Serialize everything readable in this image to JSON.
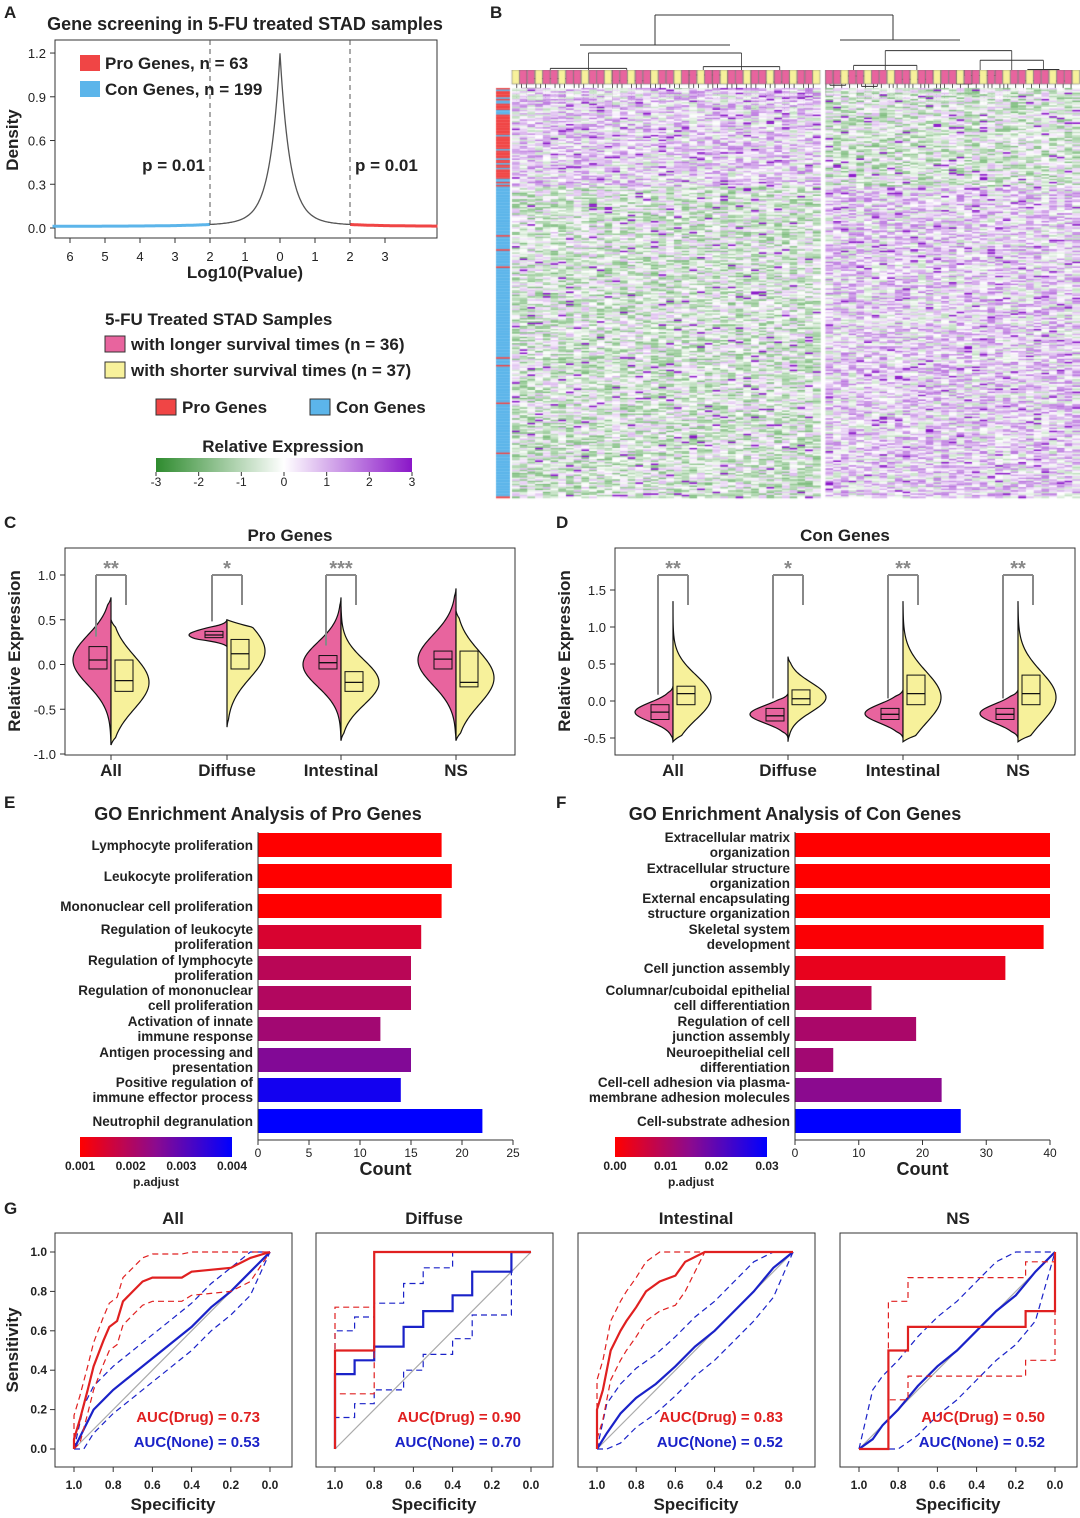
{
  "panel_labels": [
    "A",
    "B",
    "C",
    "D",
    "E",
    "F",
    "G"
  ],
  "colors": {
    "pink": "#e8649e",
    "yellow": "#f7f19b",
    "pro": "#f04545",
    "con": "#5cb5ea",
    "heat_low": "#2e8b2e",
    "heat_high": "#8a16c8",
    "drug": "#e02020",
    "none": "#1a22c8"
  },
  "legend": {
    "samples_title": "5-FU Treated STAD Samples",
    "longer": "with longer survival times (n = 36)",
    "shorter": "with shorter survival times (n = 37)",
    "pro": "Pro Genes",
    "con": "Con Genes",
    "expr_title": "Relative Expression",
    "expr_ticks": [
      "-3",
      "-2",
      "-1",
      "0",
      "1",
      "2",
      "3"
    ]
  },
  "chart_data": [
    {
      "id": "A",
      "type": "line",
      "title": "Gene screening in 5-FU treated STAD samples",
      "xlabel": "Log10(Pvalue)",
      "ylabel": "Density",
      "xticks": [
        -6,
        -5,
        -4,
        -3,
        -2,
        -1,
        0,
        1,
        2,
        3
      ],
      "xtick_labels": [
        "6",
        "5",
        "4",
        "3",
        "2",
        "1",
        "0",
        "1",
        "2",
        "3"
      ],
      "yticks": [
        "0.0",
        "0.3",
        "0.6",
        "0.9",
        "1.2"
      ],
      "ylim": [
        0,
        1.25
      ],
      "peak": 1.2,
      "thresholds": [
        -2,
        2
      ],
      "threshold_labels": [
        "p = 0.01",
        "p = 0.01"
      ],
      "legend": [
        "Pro Genes, n = 63",
        "Con Genes, n = 199"
      ]
    },
    {
      "id": "B",
      "type": "heatmap",
      "rows": {
        "pro": 63,
        "con": 199
      },
      "columns": {
        "longer": 36,
        "shorter": 37
      },
      "value_range": [
        -3,
        3
      ]
    },
    {
      "id": "C",
      "type": "violin",
      "title": "Pro Genes",
      "ylabel": "Relative Expression",
      "categories": [
        "All",
        "Diffuse",
        "Intestinal",
        "NS"
      ],
      "yticks": [
        "1.0",
        "0.5",
        "0.0",
        "-0.5",
        "-1.0"
      ],
      "ylim": [
        -1.0,
        1.0
      ],
      "significance": [
        "**",
        "*",
        "***",
        ""
      ],
      "longer": [
        {
          "q1": -0.05,
          "med": 0.05,
          "q3": 0.2,
          "mode": 0.05,
          "sd": 0.28,
          "min": -0.9,
          "max": 0.75
        },
        {
          "q1": 0.3,
          "med": 0.33,
          "q3": 0.37,
          "mode": 0.33,
          "sd": 0.07,
          "min": 0.2,
          "max": 0.5
        },
        {
          "q1": -0.05,
          "med": 0.02,
          "q3": 0.1,
          "mode": 0.0,
          "sd": 0.25,
          "min": -0.85,
          "max": 0.75
        },
        {
          "q1": -0.05,
          "med": 0.06,
          "q3": 0.15,
          "mode": 0.05,
          "sd": 0.28,
          "min": -0.85,
          "max": 0.85
        }
      ],
      "shorter": [
        {
          "q1": -0.3,
          "med": -0.18,
          "q3": 0.05,
          "mode": -0.2,
          "sd": 0.3,
          "min": -0.9,
          "max": 0.5
        },
        {
          "q1": -0.05,
          "med": 0.12,
          "q3": 0.28,
          "mode": 0.15,
          "sd": 0.3,
          "min": -0.7,
          "max": 0.5
        },
        {
          "q1": -0.3,
          "med": -0.2,
          "q3": -0.08,
          "mode": -0.2,
          "sd": 0.25,
          "min": -0.85,
          "max": 0.65
        },
        {
          "q1": -0.25,
          "med": -0.2,
          "q3": 0.15,
          "mode": -0.15,
          "sd": 0.3,
          "min": -0.85,
          "max": 0.6
        }
      ]
    },
    {
      "id": "D",
      "type": "violin",
      "title": "Con Genes",
      "ylabel": "Relative Expression",
      "categories": [
        "All",
        "Diffuse",
        "Intestinal",
        "NS"
      ],
      "yticks": [
        "1.5",
        "1.0",
        "0.5",
        "0.0",
        "-0.5"
      ],
      "ylim": [
        -0.6,
        1.7
      ],
      "significance": [
        "**",
        "*",
        "**",
        "**"
      ],
      "longer": [
        {
          "q1": -0.25,
          "med": -0.15,
          "q3": -0.05,
          "mode": -0.15,
          "sd": 0.13,
          "min": -0.55,
          "max": 0.2
        },
        {
          "q1": -0.27,
          "med": -0.2,
          "q3": -0.1,
          "mode": -0.18,
          "sd": 0.12,
          "min": -0.5,
          "max": 0.1
        },
        {
          "q1": -0.25,
          "med": -0.18,
          "q3": -0.1,
          "mode": -0.17,
          "sd": 0.13,
          "min": -0.5,
          "max": 0.15
        },
        {
          "q1": -0.25,
          "med": -0.18,
          "q3": -0.1,
          "mode": -0.17,
          "sd": 0.13,
          "min": -0.5,
          "max": 0.15
        }
      ],
      "shorter": [
        {
          "q1": -0.05,
          "med": 0.1,
          "q3": 0.2,
          "mode": 0.05,
          "sd": 0.3,
          "min": -0.55,
          "max": 1.35
        },
        {
          "q1": -0.05,
          "med": 0.03,
          "q3": 0.15,
          "mode": 0.05,
          "sd": 0.2,
          "min": -0.55,
          "max": 0.6
        },
        {
          "q1": -0.05,
          "med": 0.1,
          "q3": 0.35,
          "mode": 0.05,
          "sd": 0.35,
          "min": -0.55,
          "max": 1.35
        },
        {
          "q1": -0.05,
          "med": 0.1,
          "q3": 0.35,
          "mode": 0.05,
          "sd": 0.35,
          "min": -0.55,
          "max": 1.35
        }
      ]
    },
    {
      "id": "E",
      "type": "bar",
      "title": "GO Enrichment Analysis of Pro Genes",
      "xlabel": "Count",
      "categories": [
        [
          "Lymphocyte proliferation"
        ],
        [
          "Leukocyte proliferation"
        ],
        [
          "Mononuclear cell proliferation"
        ],
        [
          "Regulation of leukocyte",
          "proliferation"
        ],
        [
          "Regulation of lymphocyte",
          "proliferation"
        ],
        [
          "Regulation of mononuclear",
          "cell proliferation"
        ],
        [
          "Activation of innate",
          "immune response"
        ],
        [
          "Antigen processing and",
          "presentation"
        ],
        [
          "Positive regulation of",
          "immune effector process"
        ],
        [
          "Neutrophil degranulation"
        ]
      ],
      "values": [
        18,
        19,
        18,
        16,
        15,
        15,
        12,
        15,
        14,
        22
      ],
      "p_adjust": [
        0.001,
        0.001,
        0.001,
        0.0015,
        0.0019,
        0.002,
        0.0022,
        0.0026,
        0.0038,
        0.004
      ],
      "xticks": [
        0,
        5,
        10,
        15,
        20,
        25
      ],
      "xlim": [
        0,
        25
      ],
      "colorbar": {
        "label": "p.adjust",
        "ticks": [
          "0.001",
          "0.002",
          "0.003",
          "0.004"
        ],
        "range": [
          0.001,
          0.004
        ]
      }
    },
    {
      "id": "F",
      "type": "bar",
      "title": "GO Enrichment Analysis of Con Genes",
      "xlabel": "Count",
      "categories": [
        [
          "Extracellular matrix",
          "organization"
        ],
        [
          "Extracellular structure",
          "organization"
        ],
        [
          "External encapsulating",
          "structure organization"
        ],
        [
          "Skeletal system",
          "development"
        ],
        [
          "Cell junction assembly"
        ],
        [
          "Columnar/cuboidal epithelial",
          "cell differentiation"
        ],
        [
          "Regulation of cell",
          "junction assembly"
        ],
        [
          "Neuroepithelial cell",
          "differentiation"
        ],
        [
          "Cell-cell adhesion via plasma-",
          "membrane adhesion molecules"
        ],
        [
          "Cell-substrate adhesion"
        ]
      ],
      "values": [
        40,
        40,
        40,
        39,
        33,
        12,
        19,
        6,
        23,
        26
      ],
      "p_adjust": [
        0.0,
        0.0,
        0.0,
        0.0005,
        0.003,
        0.009,
        0.011,
        0.012,
        0.015,
        0.03
      ],
      "xticks": [
        0,
        10,
        20,
        30,
        40
      ],
      "xlim": [
        0,
        40
      ],
      "colorbar": {
        "label": "p.adjust",
        "ticks": [
          "0.00",
          "0.01",
          "0.02",
          "0.03"
        ],
        "range": [
          0,
          0.03
        ]
      }
    },
    {
      "id": "G",
      "type": "line",
      "xlabel": "Specificity",
      "ylabel": "Sensitivity",
      "xtick_labels": [
        "1.0",
        "0.8",
        "0.6",
        "0.4",
        "0.2",
        "0.0"
      ],
      "ytick_labels": [
        "0.0",
        "0.2",
        "0.4",
        "0.6",
        "0.8",
        "1.0"
      ],
      "panels": [
        {
          "title": "All",
          "auc_drug": "AUC(Drug) = 0.73",
          "auc_none": "AUC(None) = 0.53",
          "ci": 0.12,
          "drug": [
            [
              1,
              0
            ],
            [
              1,
              0.05
            ],
            [
              0.97,
              0.15
            ],
            [
              0.93,
              0.3
            ],
            [
              0.9,
              0.42
            ],
            [
              0.85,
              0.55
            ],
            [
              0.82,
              0.62
            ],
            [
              0.78,
              0.65
            ],
            [
              0.75,
              0.75
            ],
            [
              0.7,
              0.8
            ],
            [
              0.65,
              0.85
            ],
            [
              0.6,
              0.87
            ],
            [
              0.45,
              0.87
            ],
            [
              0.4,
              0.9
            ],
            [
              0.2,
              0.92
            ],
            [
              0.1,
              0.97
            ],
            [
              0,
              1
            ]
          ],
          "none": [
            [
              1,
              0
            ],
            [
              0.95,
              0.1
            ],
            [
              0.9,
              0.2
            ],
            [
              0.8,
              0.3
            ],
            [
              0.7,
              0.38
            ],
            [
              0.6,
              0.46
            ],
            [
              0.5,
              0.54
            ],
            [
              0.4,
              0.62
            ],
            [
              0.3,
              0.72
            ],
            [
              0.2,
              0.8
            ],
            [
              0.1,
              0.9
            ],
            [
              0,
              1
            ]
          ]
        },
        {
          "title": "Diffuse",
          "auc_drug": "AUC(Drug) = 0.90",
          "auc_none": "AUC(None) = 0.70",
          "ci": 0.22,
          "drug": [
            [
              1,
              0
            ],
            [
              1,
              0.5
            ],
            [
              0.8,
              0.5
            ],
            [
              0.8,
              1
            ],
            [
              0,
              1
            ]
          ],
          "none": [
            [
              1,
              0
            ],
            [
              1,
              0.38
            ],
            [
              0.9,
              0.38
            ],
            [
              0.9,
              0.45
            ],
            [
              0.8,
              0.45
            ],
            [
              0.8,
              0.52
            ],
            [
              0.65,
              0.52
            ],
            [
              0.65,
              0.62
            ],
            [
              0.55,
              0.62
            ],
            [
              0.55,
              0.7
            ],
            [
              0.4,
              0.7
            ],
            [
              0.4,
              0.78
            ],
            [
              0.3,
              0.78
            ],
            [
              0.3,
              0.9
            ],
            [
              0.1,
              0.9
            ],
            [
              0.1,
              1
            ],
            [
              0,
              1
            ]
          ]
        },
        {
          "title": "Intestinal",
          "auc_drug": "AUC(Drug) = 0.83",
          "auc_none": "AUC(None) = 0.52",
          "ci": 0.15,
          "drug": [
            [
              1,
              0
            ],
            [
              1,
              0.2
            ],
            [
              0.97,
              0.3
            ],
            [
              0.93,
              0.5
            ],
            [
              0.88,
              0.6
            ],
            [
              0.85,
              0.65
            ],
            [
              0.8,
              0.72
            ],
            [
              0.75,
              0.8
            ],
            [
              0.68,
              0.85
            ],
            [
              0.6,
              0.88
            ],
            [
              0.55,
              0.95
            ],
            [
              0.45,
              1
            ],
            [
              0,
              1
            ]
          ],
          "none": [
            [
              1,
              0
            ],
            [
              0.95,
              0.08
            ],
            [
              0.88,
              0.18
            ],
            [
              0.8,
              0.26
            ],
            [
              0.7,
              0.33
            ],
            [
              0.6,
              0.42
            ],
            [
              0.5,
              0.52
            ],
            [
              0.4,
              0.6
            ],
            [
              0.3,
              0.7
            ],
            [
              0.2,
              0.8
            ],
            [
              0.1,
              0.92
            ],
            [
              0,
              1
            ]
          ]
        },
        {
          "title": "NS",
          "auc_drug": "AUC(Drug) = 0.50",
          "auc_none": "AUC(None) = 0.52",
          "ci": 0.25,
          "drug": [
            [
              1,
              0
            ],
            [
              0.85,
              0
            ],
            [
              0.85,
              0.5
            ],
            [
              0.75,
              0.5
            ],
            [
              0.75,
              0.62
            ],
            [
              0.15,
              0.62
            ],
            [
              0.15,
              0.7
            ],
            [
              0,
              0.7
            ],
            [
              0,
              1
            ]
          ],
          "none": [
            [
              1,
              0
            ],
            [
              0.93,
              0.05
            ],
            [
              0.88,
              0.12
            ],
            [
              0.8,
              0.2
            ],
            [
              0.7,
              0.32
            ],
            [
              0.6,
              0.42
            ],
            [
              0.5,
              0.5
            ],
            [
              0.4,
              0.6
            ],
            [
              0.3,
              0.7
            ],
            [
              0.2,
              0.78
            ],
            [
              0.1,
              0.9
            ],
            [
              0,
              1
            ]
          ]
        }
      ]
    }
  ]
}
